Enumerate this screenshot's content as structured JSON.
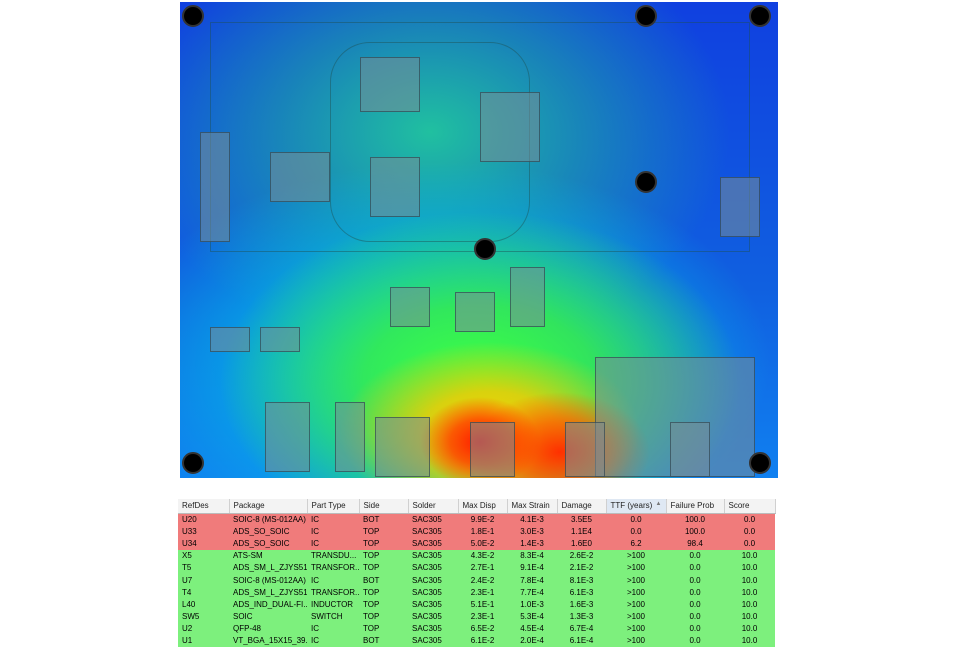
{
  "heatmap": {
    "colors": {
      "low": "#1040e0",
      "mid": "#40ff40",
      "high": "#ff1a00"
    }
  },
  "table": {
    "columns": [
      "RefDes",
      "Package",
      "Part Type",
      "Side",
      "Solder",
      "Max Disp",
      "Max Strain",
      "Damage",
      "TTF (years)",
      "Failure Prob",
      "Score"
    ],
    "sort_indicator": "▲",
    "rows": [
      {
        "status": "fail",
        "cells": [
          "U20",
          "SOIC-8 (MS-012AA)",
          "IC",
          "BOT",
          "SAC305",
          "9.9E-2",
          "4.1E-3",
          "3.5E5",
          "0.0",
          "100.0",
          "0.0"
        ]
      },
      {
        "status": "fail",
        "cells": [
          "U33",
          "ADS_SO_SOIC",
          "IC",
          "TOP",
          "SAC305",
          "1.8E-1",
          "3.0E-3",
          "1.1E4",
          "0.0",
          "100.0",
          "0.0"
        ]
      },
      {
        "status": "fail",
        "cells": [
          "U34",
          "ADS_SO_SOIC",
          "IC",
          "TOP",
          "SAC305",
          "5.0E-2",
          "1.4E-3",
          "1.6E0",
          "6.2",
          "98.4",
          "0.0"
        ]
      },
      {
        "status": "pass",
        "cells": [
          "X5",
          "ATS-SM",
          "TRANSDU...",
          "TOP",
          "SAC305",
          "4.3E-2",
          "8.3E-4",
          "2.6E-2",
          ">100",
          "0.0",
          "10.0"
        ]
      },
      {
        "status": "pass",
        "cells": [
          "T5",
          "ADS_SM_L_ZJYS51R5",
          "TRANSFOR...",
          "TOP",
          "SAC305",
          "2.7E-1",
          "9.1E-4",
          "2.1E-2",
          ">100",
          "0.0",
          "10.0"
        ]
      },
      {
        "status": "pass",
        "cells": [
          "U7",
          "SOIC-8 (MS-012AA)",
          "IC",
          "BOT",
          "SAC305",
          "2.4E-2",
          "7.8E-4",
          "8.1E-3",
          ">100",
          "0.0",
          "10.0"
        ]
      },
      {
        "status": "pass",
        "cells": [
          "T4",
          "ADS_SM_L_ZJYS51R5",
          "TRANSFOR...",
          "TOP",
          "SAC305",
          "2.3E-1",
          "7.7E-4",
          "6.1E-3",
          ">100",
          "0.0",
          "10.0"
        ]
      },
      {
        "status": "pass",
        "cells": [
          "L40",
          "ADS_IND_DUAL-FI...",
          "INDUCTOR",
          "TOP",
          "SAC305",
          "5.1E-1",
          "1.0E-3",
          "1.6E-3",
          ">100",
          "0.0",
          "10.0"
        ]
      },
      {
        "status": "pass",
        "cells": [
          "SW5",
          "SOIC",
          "SWITCH",
          "TOP",
          "SAC305",
          "2.3E-1",
          "5.3E-4",
          "1.3E-3",
          ">100",
          "0.0",
          "10.0"
        ]
      },
      {
        "status": "pass",
        "cells": [
          "U2",
          "QFP-48",
          "IC",
          "TOP",
          "SAC305",
          "6.5E-2",
          "4.5E-4",
          "6.7E-4",
          ">100",
          "0.0",
          "10.0"
        ]
      },
      {
        "status": "pass",
        "cells": [
          "U1",
          "VT_BGA_15X15_39...",
          "IC",
          "BOT",
          "SAC305",
          "6.1E-2",
          "2.0E-4",
          "6.1E-4",
          ">100",
          "0.0",
          "10.0"
        ]
      }
    ]
  }
}
